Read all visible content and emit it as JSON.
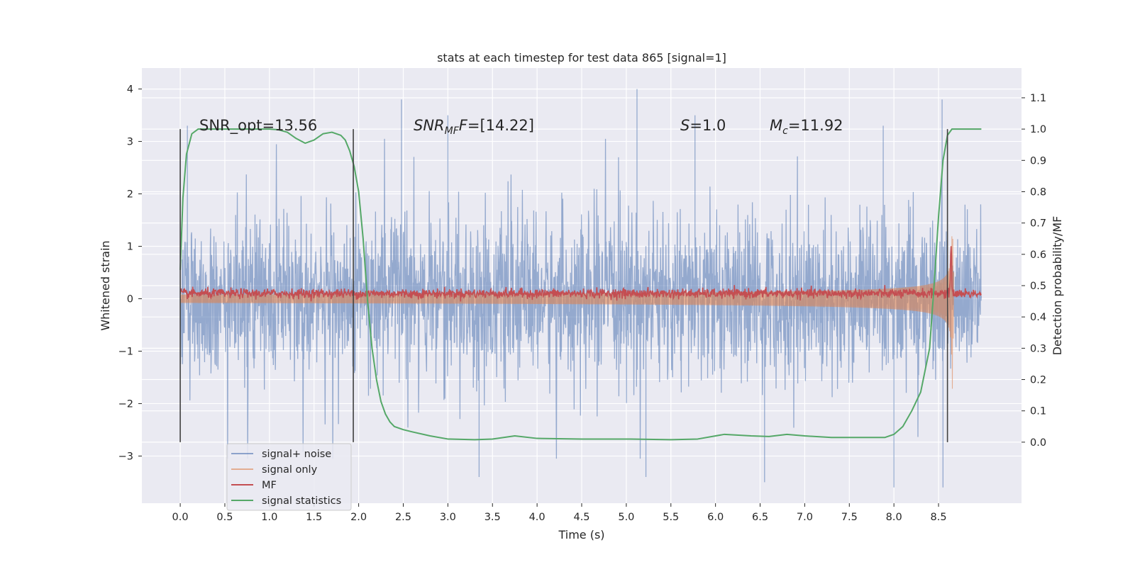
{
  "chart_data": {
    "type": "line",
    "title": "stats at each timestep for test data 865 [signal=1]",
    "xlabel": "Time (s)",
    "ylabel_left": "Whitened strain",
    "ylabel_right": "Detection probability/MF",
    "xlim": [
      -0.43,
      9.43
    ],
    "ylim_left": [
      -3.9,
      4.4
    ],
    "ylim_right": [
      -0.195,
      1.195
    ],
    "xticks": [
      0.0,
      0.5,
      1.0,
      1.5,
      2.0,
      2.5,
      3.0,
      3.5,
      4.0,
      4.5,
      5.0,
      5.5,
      6.0,
      6.5,
      7.0,
      7.5,
      8.0,
      8.5
    ],
    "xtick_labels": [
      "0.0",
      "0.5",
      "1.0",
      "1.5",
      "2.0",
      "2.5",
      "3.0",
      "3.5",
      "4.0",
      "4.5",
      "5.0",
      "5.5",
      "6.0",
      "6.5",
      "7.0",
      "7.5",
      "8.0",
      "8.5"
    ],
    "yticks_left": [
      -3,
      -2,
      -1,
      0,
      1,
      2,
      3,
      4
    ],
    "ytick_labels_left": [
      "−3",
      "−2",
      "−1",
      "0",
      "1",
      "2",
      "3",
      "4"
    ],
    "yticks_right": [
      0.0,
      0.1,
      0.2,
      0.3,
      0.4,
      0.5,
      0.6,
      0.7,
      0.8,
      0.9,
      1.0,
      1.1
    ],
    "ytick_labels_right": [
      "0.0",
      "0.1",
      "0.2",
      "0.3",
      "0.4",
      "0.5",
      "0.6",
      "0.7",
      "0.8",
      "0.9",
      "1.0",
      "1.1"
    ],
    "vertical_markers": [
      0.0,
      1.94,
      8.6
    ],
    "marker_range_right": [
      0.0,
      1.0
    ],
    "annotations": {
      "snr_opt": "SNR_opt=13.56",
      "snr_mf_label": "SNR",
      "snr_mf_sub": "MF",
      "snr_mf_value": "=[14.22]",
      "s_label": "S",
      "s_value": "=1.0",
      "mc_label": "M",
      "mc_sub": "c",
      "mc_value": "=11.92"
    },
    "series": [
      {
        "name": "signal+ noise",
        "axis": "left",
        "color": "#4c72b0",
        "description": "whitened strain with noise, roughly uniform amplitude about 1.3 with spikes up to 4.0",
        "t_range": [
          0.0,
          8.98
        ],
        "amplitude": 1.35,
        "peaks": [
          [
            0.08,
            3.3
          ],
          [
            2.48,
            3.8
          ],
          [
            3.0,
            3.5
          ],
          [
            5.12,
            4.0
          ],
          [
            8.54,
            3.8
          ],
          [
            5.77,
            3.5
          ],
          [
            7.88,
            3.3
          ],
          [
            8.55,
            -3.6
          ],
          [
            8.0,
            -3.6
          ],
          [
            6.55,
            -3.5
          ],
          [
            3.35,
            -3.4
          ],
          [
            5.22,
            -3.4
          ]
        ]
      },
      {
        "name": "signal only",
        "axis": "left",
        "color": "#dd8452",
        "description": "chirp waveform, amplitude growing towards merger near 8.65 s",
        "t_range": [
          0.0,
          8.67
        ],
        "merger_time": 8.65,
        "peak_amplitude": 2.5
      },
      {
        "name": "MF",
        "axis": "left",
        "color": "#c44e52",
        "description": "matched filter output, small values near 0.1 with a spike near merger",
        "t_range": [
          0.0,
          8.98
        ],
        "baseline": 0.1,
        "spike_time": 8.64,
        "spike_value": 1.0
      },
      {
        "name": "signal statistics",
        "axis": "right",
        "color": "#55a868",
        "description": "detection probability per time step",
        "x": [
          0.0,
          0.03,
          0.07,
          0.13,
          0.2,
          0.3,
          0.5,
          0.8,
          1.0,
          1.1,
          1.2,
          1.3,
          1.4,
          1.5,
          1.6,
          1.7,
          1.8,
          1.85,
          1.9,
          1.95,
          2.0,
          2.05,
          2.1,
          2.15,
          2.2,
          2.25,
          2.3,
          2.35,
          2.4,
          2.5,
          2.6,
          2.8,
          3.0,
          3.3,
          3.5,
          3.75,
          4.0,
          4.5,
          5.0,
          5.5,
          5.8,
          6.1,
          6.4,
          6.6,
          6.8,
          7.0,
          7.3,
          7.6,
          7.9,
          8.0,
          8.1,
          8.2,
          8.3,
          8.4,
          8.45,
          8.5,
          8.55,
          8.6,
          8.65,
          8.7,
          8.8,
          8.98
        ],
        "y": [
          0.55,
          0.78,
          0.92,
          0.985,
          1.0,
          1.0,
          1.0,
          1.0,
          1.0,
          0.998,
          0.99,
          0.97,
          0.955,
          0.965,
          0.985,
          0.99,
          0.98,
          0.965,
          0.93,
          0.88,
          0.8,
          0.65,
          0.45,
          0.3,
          0.2,
          0.13,
          0.09,
          0.065,
          0.05,
          0.04,
          0.033,
          0.02,
          0.01,
          0.008,
          0.01,
          0.02,
          0.012,
          0.01,
          0.01,
          0.008,
          0.01,
          0.025,
          0.02,
          0.018,
          0.025,
          0.02,
          0.015,
          0.015,
          0.015,
          0.025,
          0.05,
          0.1,
          0.16,
          0.3,
          0.5,
          0.72,
          0.9,
          0.98,
          1.0,
          1.0,
          1.0,
          1.0
        ]
      }
    ],
    "legend": {
      "position": "lower-left",
      "entries": [
        {
          "label": "signal+ noise",
          "color": "#4c72b0"
        },
        {
          "label": "signal only",
          "color": "#dd8452"
        },
        {
          "label": "MF",
          "color": "#c44e52"
        },
        {
          "label": "signal statistics",
          "color": "#55a868"
        }
      ]
    },
    "grid": true,
    "background": "#eaeaf2"
  }
}
